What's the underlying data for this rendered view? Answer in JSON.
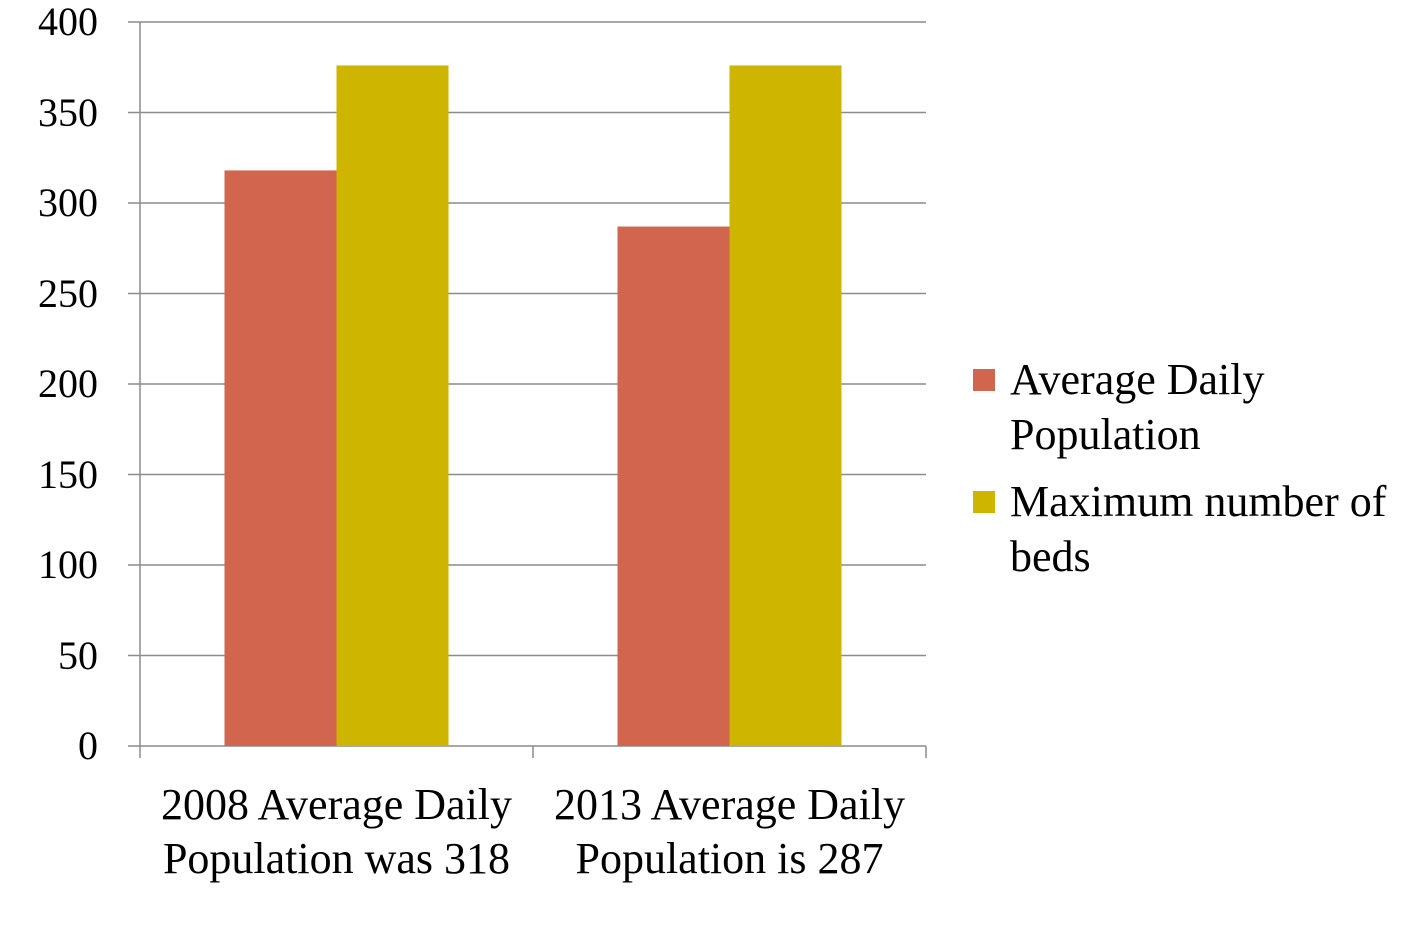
{
  "chart_data": {
    "type": "bar",
    "categories": [
      "2008 Average Daily Population was 318",
      "2013 Average Daily Population is 287"
    ],
    "series": [
      {
        "name": "Average Daily Population",
        "color": "#d1654d",
        "values": [
          318,
          287
        ]
      },
      {
        "name": "Maximum number of beds",
        "color": "#cdb500",
        "values": [
          376,
          376
        ]
      }
    ],
    "ylim": [
      0,
      400
    ],
    "yticks": [
      0,
      50,
      100,
      150,
      200,
      250,
      300,
      350,
      400
    ],
    "grid": true,
    "legend": "right"
  }
}
